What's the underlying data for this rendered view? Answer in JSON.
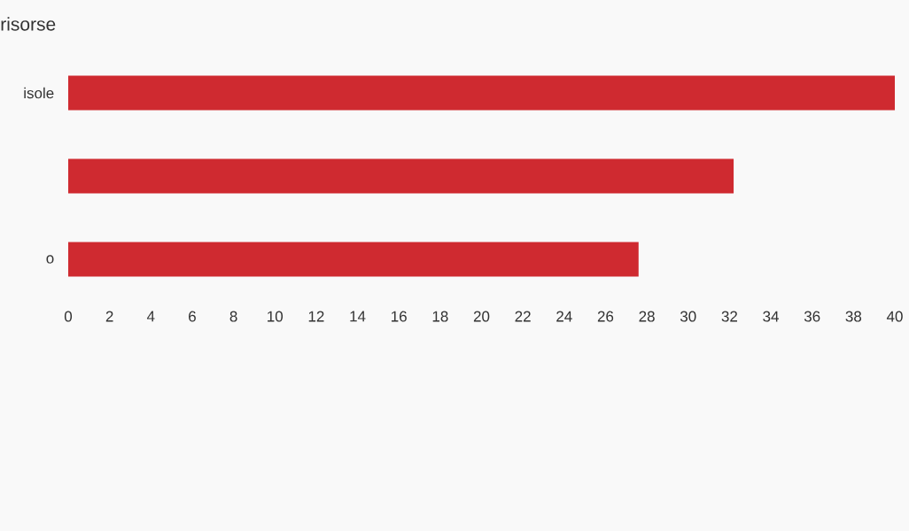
{
  "chart_data": {
    "type": "bar",
    "orientation": "horizontal",
    "title": "risorse",
    "categories": [
      "isole",
      null,
      "o"
    ],
    "values": [
      40,
      32.2,
      27.6
    ],
    "color": "#cf2a30",
    "xlim": [
      0,
      40
    ],
    "xticks": [
      0,
      2,
      4,
      6,
      8,
      10,
      12,
      14,
      16,
      18,
      20,
      22,
      24,
      26,
      28,
      30,
      32,
      34,
      36,
      38,
      40
    ]
  }
}
